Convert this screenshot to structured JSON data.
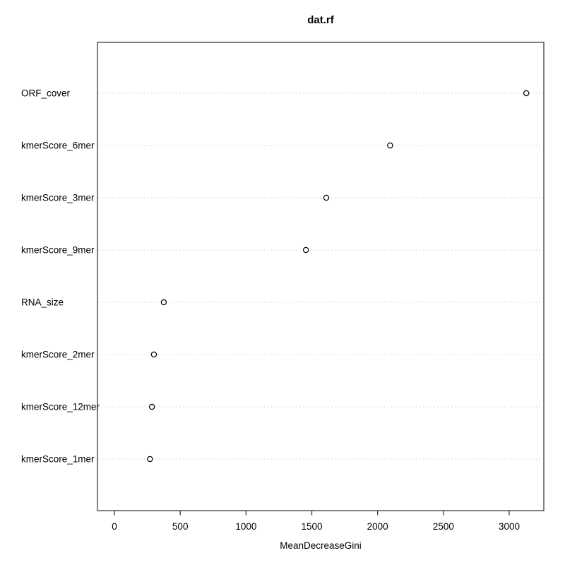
{
  "window": {
    "title": "dat.rf"
  },
  "chart_data": {
    "type": "scatter",
    "subtype": "dot-chart-variable-importance",
    "title": "dat.rf",
    "xlabel": "MeanDecreaseGini",
    "ylabel": "",
    "row_order": "top_to_bottom",
    "categories": [
      "ORF_cover",
      "kmerScore_6mer",
      "kmerScore_3mer",
      "kmerScore_9mer",
      "RNA_size",
      "kmerScore_2mer",
      "kmerScore_12mer",
      "kmerScore_1mer"
    ],
    "values": [
      3130,
      2095,
      1610,
      1455,
      375,
      300,
      285,
      270
    ],
    "x_ticks": [
      0,
      500,
      1000,
      1500,
      2000,
      2500,
      3000
    ],
    "xlim": [
      -129,
      3263
    ],
    "grid": "dotted horizontal line per category",
    "legend": "none",
    "marker": "open-circle",
    "colors": {
      "point_stroke": "#000000",
      "gridline": "#d8d8d8",
      "box_border": "#3a3a3a",
      "tick": "#3a3a3a",
      "text": "#000000",
      "background": "#ffffff"
    }
  }
}
